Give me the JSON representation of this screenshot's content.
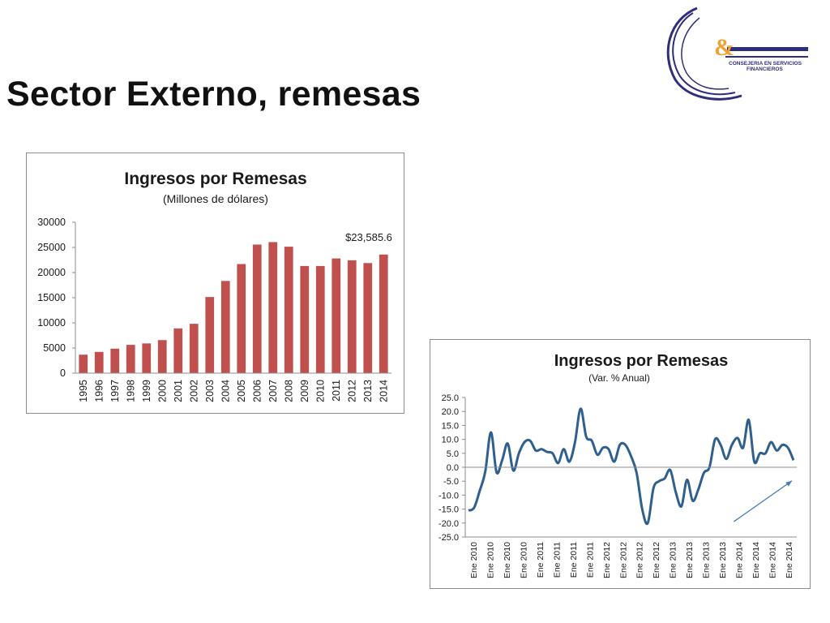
{
  "slide": {
    "title": "Sector Externo, remesas"
  },
  "logo": {
    "mark": "&",
    "line1": "CONSEJERIA EN SERVICIOS",
    "line2": "FINANCIEROS",
    "colors": {
      "navy": "#2e2e7a",
      "orange": "#f0a030"
    }
  },
  "chart_data": [
    {
      "type": "bar",
      "title": "Ingresos por Remesas",
      "subtitle": "(Millones de dólares)",
      "categories": [
        "1995",
        "1996",
        "1997",
        "1998",
        "1999",
        "2000",
        "2001",
        "2002",
        "2003",
        "2004",
        "2005",
        "2006",
        "2007",
        "2008",
        "2009",
        "2010",
        "2011",
        "2012",
        "2013",
        "2014"
      ],
      "values": [
        3673,
        4224,
        4865,
        5627,
        5910,
        6573,
        8895,
        9814,
        15138,
        18332,
        21688,
        25567,
        26059,
        25145,
        21306,
        21304,
        22803,
        22438,
        21892,
        23586
      ],
      "ylim": [
        0,
        30000
      ],
      "yticks": [
        "0",
        "5000",
        "10000",
        "15000",
        "20000",
        "25000",
        "30000"
      ],
      "annotation": "$23,585.6",
      "bar_color": "#c0504d",
      "grid": false
    },
    {
      "type": "line",
      "title": "Ingresos por Remesas",
      "subtitle": "(Var. % Anual)",
      "x_labels": [
        "Ene 2010",
        "Ene 2010",
        "Ene 2010",
        "Ene 2010",
        "Ene 2011",
        "Ene 2011",
        "Ene 2011",
        "Ene 2011",
        "Ene 2012",
        "Ene 2012",
        "Ene 2012",
        "Ene 2012",
        "Ene 2013",
        "Ene 2013",
        "Ene 2013",
        "Ene 2013",
        "Ene 2014",
        "Ene 2014",
        "Ene 2014",
        "Ene 2014"
      ],
      "values": [
        -15.5,
        -14.5,
        -8.5,
        -1.5,
        12.5,
        -1.8,
        2.5,
        8.5,
        -1.2,
        5,
        9,
        9.5,
        6,
        6.5,
        5.5,
        5,
        1.5,
        6.5,
        2,
        9,
        21,
        11,
        9.5,
        4.5,
        7,
        6.5,
        2,
        8,
        8,
        4,
        -2,
        -15,
        -20,
        -7.5,
        -5,
        -4,
        -1,
        -9,
        -14,
        -4.5,
        -12,
        -8,
        -2,
        0,
        10,
        8,
        3,
        8,
        10.5,
        7,
        17,
        2,
        5,
        5,
        9,
        6,
        8,
        7,
        2.5
      ],
      "ylim": [
        -25,
        25
      ],
      "yticks": [
        "25.0",
        "20.0",
        "15.0",
        "10.0",
        "5.0",
        "0.0",
        "-5.0",
        "-10.0",
        "-15.0",
        "-20.0",
        "-25.0"
      ],
      "line_color": "#2f5f8f",
      "trend_arrow": {
        "from": -19.5,
        "to": -4
      },
      "grid": false
    }
  ]
}
